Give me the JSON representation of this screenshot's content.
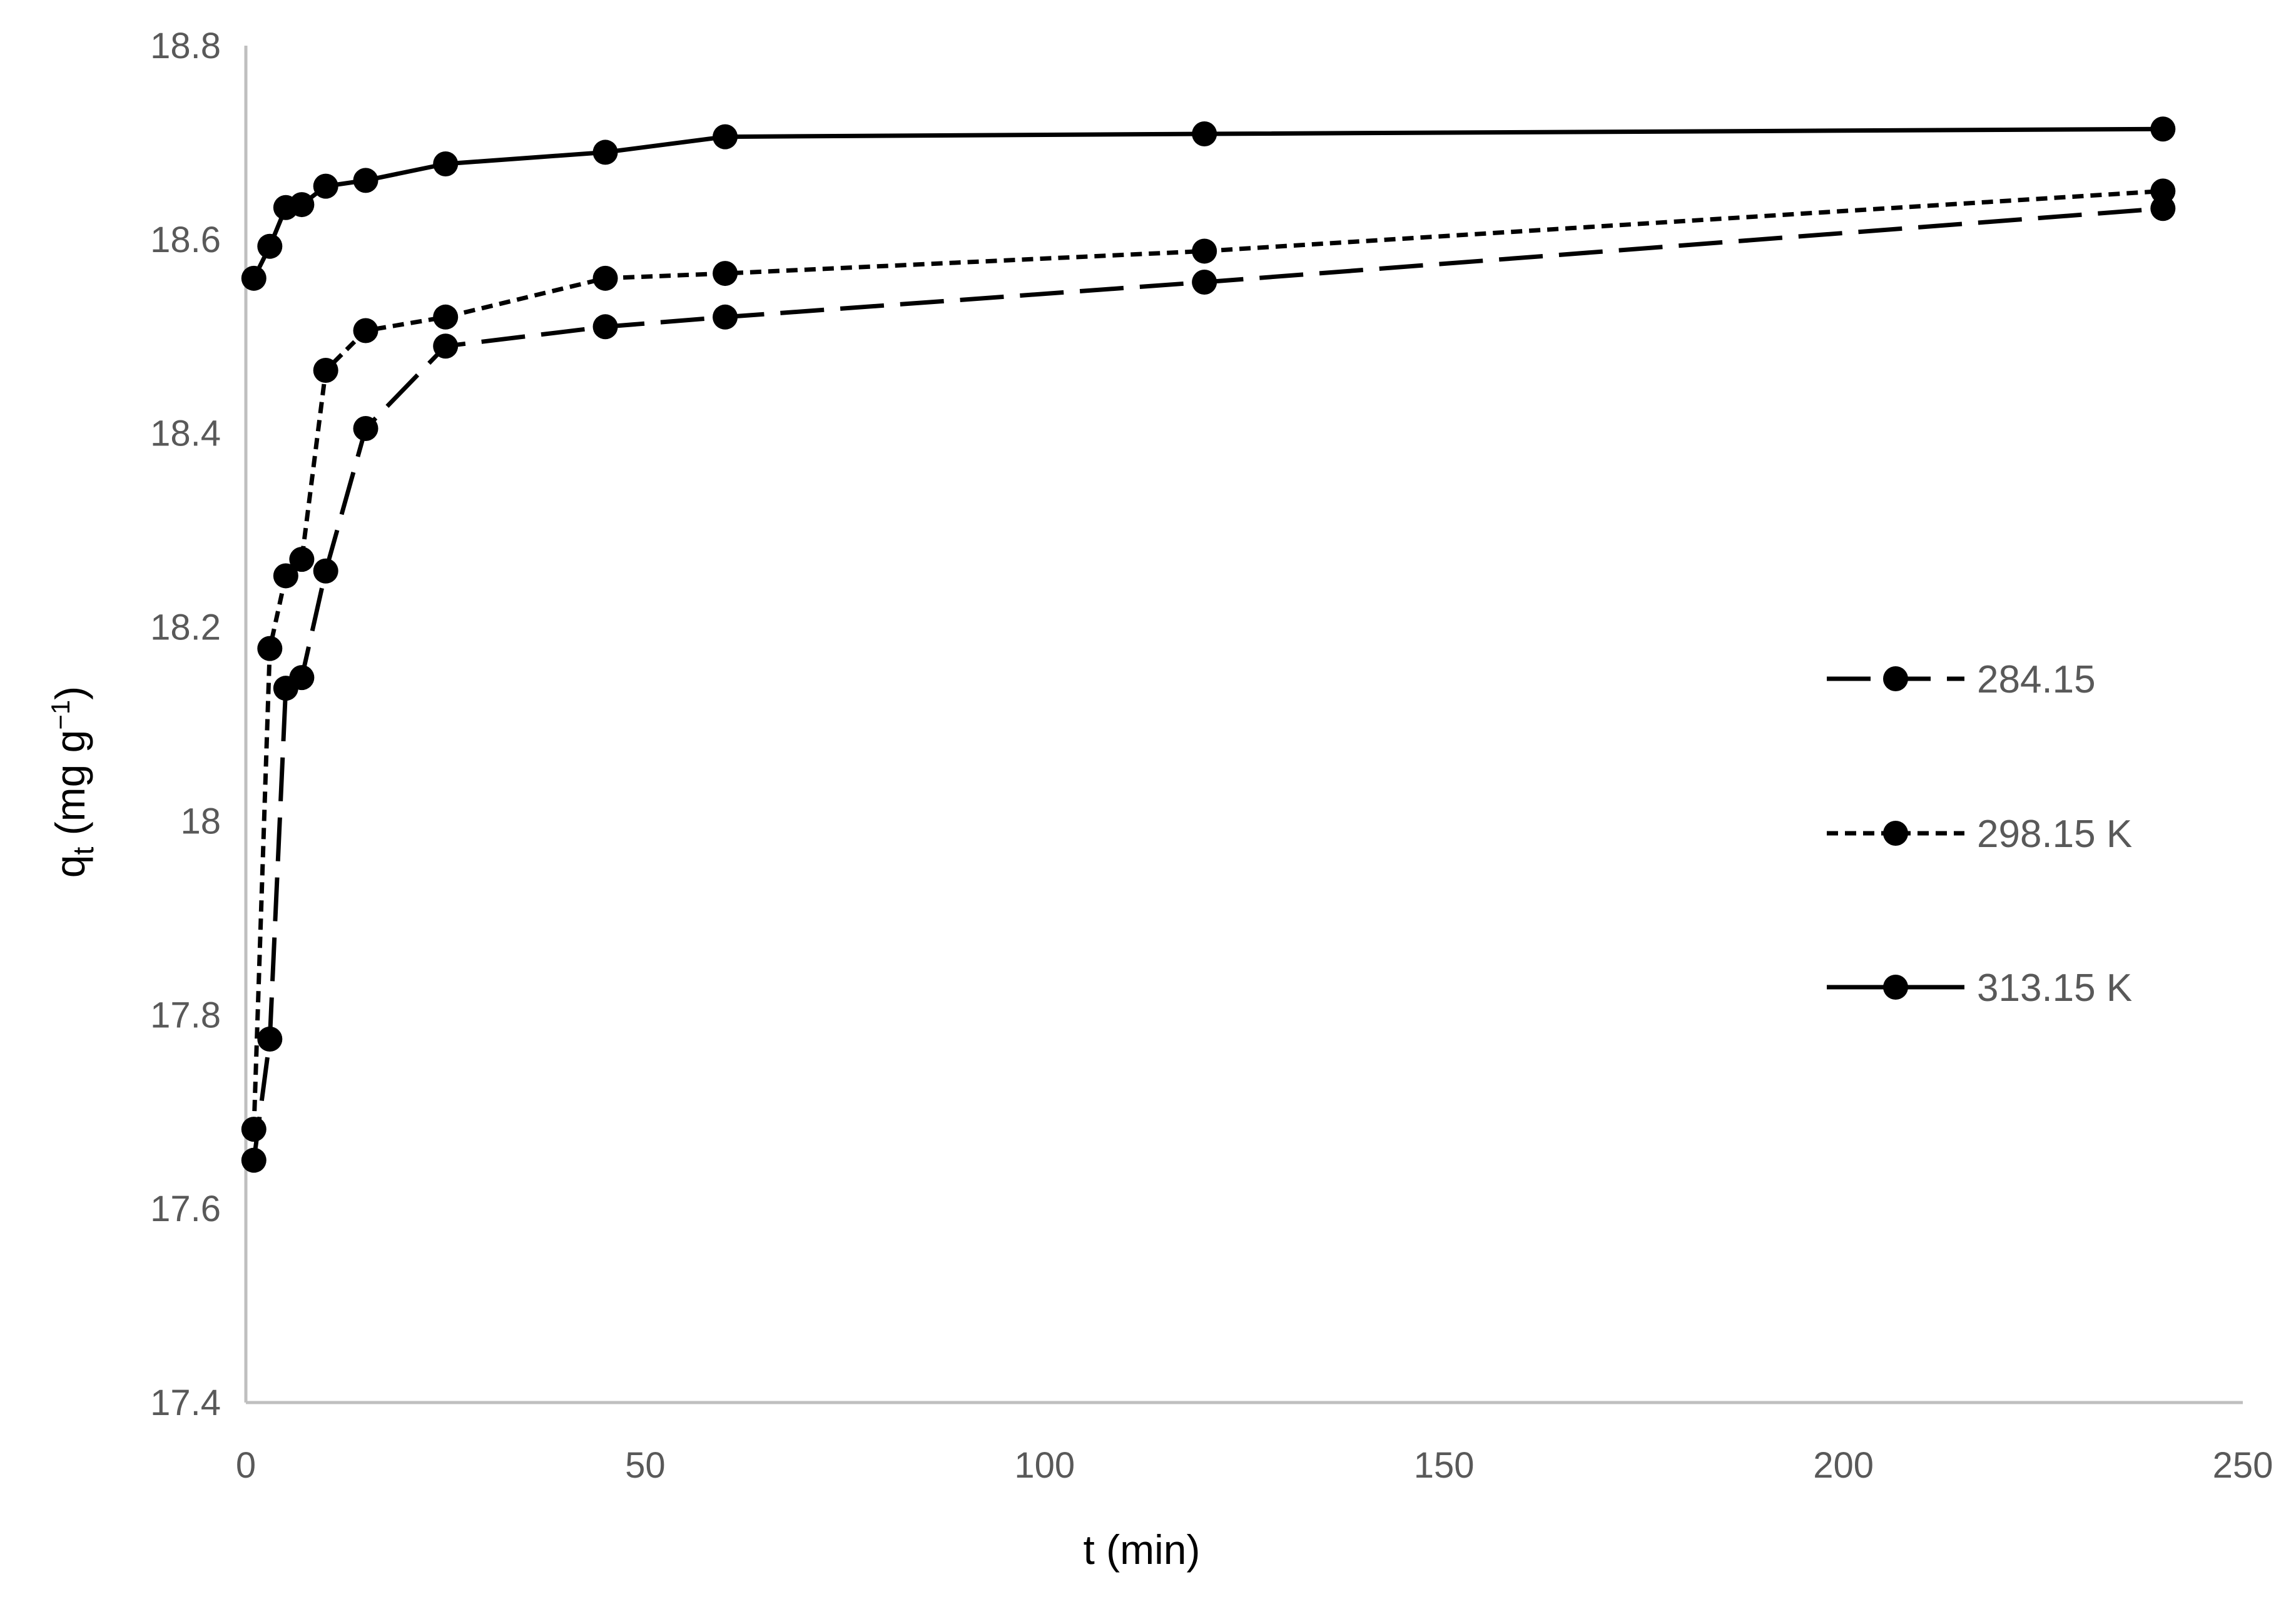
{
  "chart_data": {
    "type": "line",
    "xlabel": "t (min)",
    "ylabel": {
      "base": "q",
      "sub": "t",
      "unit_open": " (mg g",
      "unit_sup": "−1",
      "unit_close": ")"
    },
    "xlim": [
      0,
      250
    ],
    "ylim": [
      17.4,
      18.8
    ],
    "xticks": [
      0,
      50,
      100,
      150,
      200,
      250
    ],
    "yticks": [
      17.4,
      17.6,
      17.8,
      18,
      18.2,
      18.4,
      18.6,
      18.8
    ],
    "grid": false,
    "legend_position": "right",
    "axis_color": "#bfbfbf",
    "series_color": "#000000",
    "series": [
      {
        "name": "284.15",
        "line_style": "long-dash",
        "x": [
          1,
          3,
          5,
          7,
          10,
          15,
          25,
          45,
          60,
          120,
          240
        ],
        "y": [
          17.65,
          17.775,
          18.137,
          18.148,
          18.258,
          18.405,
          18.49,
          18.51,
          18.52,
          18.556,
          18.632
        ]
      },
      {
        "name": "298.15 K",
        "line_style": "short-dash",
        "x": [
          1,
          3,
          5,
          7,
          10,
          15,
          25,
          45,
          60,
          120,
          240
        ],
        "y": [
          17.682,
          18.178,
          18.253,
          18.27,
          18.465,
          18.506,
          18.52,
          18.56,
          18.565,
          18.588,
          18.65
        ]
      },
      {
        "name": "313.15 K",
        "line_style": "solid",
        "x": [
          1,
          3,
          5,
          7,
          10,
          15,
          25,
          45,
          60,
          120,
          240
        ],
        "y": [
          18.56,
          18.593,
          18.633,
          18.636,
          18.655,
          18.661,
          18.678,
          18.69,
          18.706,
          18.709,
          18.714
        ]
      }
    ]
  }
}
